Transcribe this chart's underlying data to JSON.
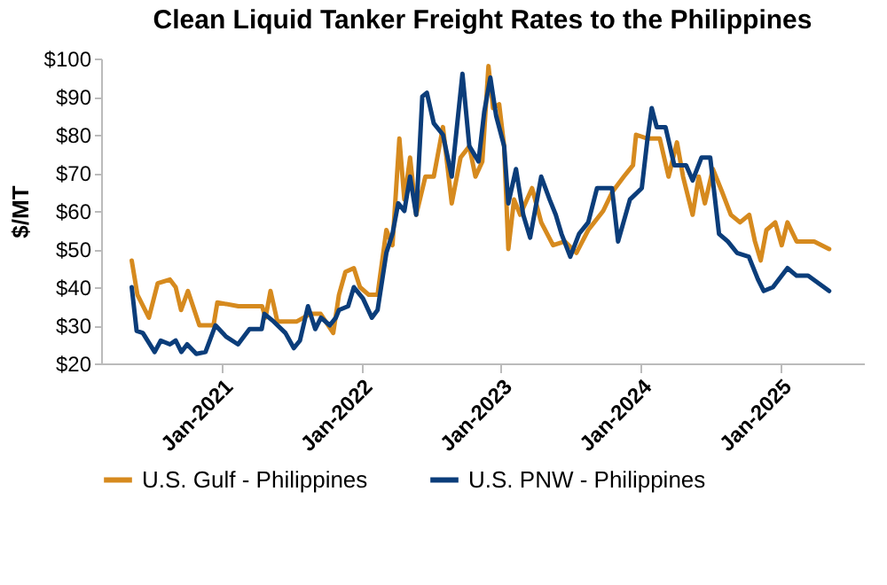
{
  "chart_data": {
    "type": "line",
    "title": "Clean Liquid Tanker Freight Rates to the Philippines",
    "ylabel": "$/MT",
    "xlim": [
      "2020-02-20",
      "2025-08-07"
    ],
    "xticks": [
      {
        "value": "2021-01-01",
        "label": "Jan-2021"
      },
      {
        "value": "2022-01-01",
        "label": "Jan-2022"
      },
      {
        "value": "2023-01-01",
        "label": "Jan-2023"
      },
      {
        "value": "2024-01-01",
        "label": "Jan-2024"
      },
      {
        "value": "2025-01-01",
        "label": "Jan-2025"
      }
    ],
    "ylim": [
      20,
      100
    ],
    "yticks": [
      {
        "value": 20,
        "label": "$20"
      },
      {
        "value": 30,
        "label": "$30"
      },
      {
        "value": 40,
        "label": "$40"
      },
      {
        "value": 50,
        "label": "$50"
      },
      {
        "value": 60,
        "label": "$60"
      },
      {
        "value": 70,
        "label": "$70"
      },
      {
        "value": 80,
        "label": "$80"
      },
      {
        "value": 90,
        "label": "$90"
      },
      {
        "value": 100,
        "label": "$100"
      }
    ],
    "grid": false,
    "legend": "bottom",
    "series": [
      {
        "name": "U.S. Gulf - Philippines",
        "color": "#d68a1e",
        "x": [
          "2020-05-10",
          "2020-05-25",
          "2020-06-24",
          "2020-07-17",
          "2020-08-18",
          "2020-09-02",
          "2020-09-16",
          "2020-10-04",
          "2020-11-03",
          "2020-12-10",
          "2020-12-20",
          "2021-02-13",
          "2021-04-16",
          "2021-04-25",
          "2021-05-08",
          "2021-05-26",
          "2021-07-16",
          "2021-08-20",
          "2021-09-16",
          "2021-10-19",
          "2021-11-03",
          "2021-11-20",
          "2021-12-12",
          "2021-12-28",
          "2022-01-20",
          "2022-02-12",
          "2022-03-07",
          "2022-03-23",
          "2022-04-10",
          "2022-04-23",
          "2022-05-08",
          "2022-05-24",
          "2022-06-17",
          "2022-07-09",
          "2022-08-02",
          "2022-08-25",
          "2022-09-17",
          "2022-10-10",
          "2022-10-26",
          "2022-11-13",
          "2022-11-29",
          "2022-12-11",
          "2022-12-27",
          "2023-01-09",
          "2023-01-20",
          "2023-02-04",
          "2023-02-20",
          "2023-03-23",
          "2023-04-16",
          "2023-05-17",
          "2023-06-17",
          "2023-07-17",
          "2023-08-17",
          "2023-09-25",
          "2023-10-19",
          "2023-11-18",
          "2023-12-12",
          "2023-12-20",
          "2024-01-19",
          "2024-02-20",
          "2024-03-14",
          "2024-04-05",
          "2024-04-21",
          "2024-05-16",
          "2024-06-01",
          "2024-06-17",
          "2024-07-08",
          "2024-08-01",
          "2024-08-24",
          "2024-09-17",
          "2024-10-11",
          "2024-10-26",
          "2024-11-10",
          "2024-11-25",
          "2024-12-18",
          "2025-01-04",
          "2025-01-19",
          "2025-02-12",
          "2025-03-30",
          "2025-05-08"
        ],
        "values": [
          47,
          38,
          32,
          41,
          42,
          40,
          34,
          39,
          30,
          30,
          36,
          35,
          35,
          32,
          39,
          31,
          31,
          33,
          33,
          28,
          38,
          44,
          45,
          40,
          38,
          38,
          55,
          51,
          79,
          63,
          74,
          59,
          69,
          69,
          82,
          62,
          74,
          77,
          69,
          73,
          98,
          87,
          88,
          77,
          50,
          63,
          59,
          66,
          57,
          51,
          52,
          49,
          55,
          60,
          65,
          69,
          72,
          80,
          79,
          79,
          69,
          78,
          69,
          59,
          69,
          62,
          71,
          65,
          59,
          57,
          59,
          52,
          47,
          55,
          57,
          51,
          57,
          52,
          52,
          50
        ]
      },
      {
        "name": "U.S. PNW - Philippines",
        "color": "#0b3d7a",
        "x": [
          "2020-05-10",
          "2020-05-23",
          "2020-06-08",
          "2020-07-09",
          "2020-07-25",
          "2020-08-18",
          "2020-09-02",
          "2020-09-17",
          "2020-10-02",
          "2020-10-26",
          "2020-11-19",
          "2020-12-15",
          "2021-01-12",
          "2021-02-12",
          "2021-03-14",
          "2021-04-15",
          "2021-04-22",
          "2021-05-16",
          "2021-06-16",
          "2021-07-08",
          "2021-07-24",
          "2021-08-14",
          "2021-09-02",
          "2021-09-17",
          "2021-10-10",
          "2021-10-26",
          "2021-11-03",
          "2021-11-27",
          "2021-12-12",
          "2022-01-05",
          "2022-01-28",
          "2022-02-12",
          "2022-03-07",
          "2022-03-23",
          "2022-04-07",
          "2022-04-23",
          "2022-05-08",
          "2022-05-24",
          "2022-06-09",
          "2022-06-21",
          "2022-07-09",
          "2022-08-02",
          "2022-08-25",
          "2022-09-22",
          "2022-10-10",
          "2022-11-03",
          "2022-11-18",
          "2022-12-04",
          "2022-12-19",
          "2023-01-09",
          "2023-01-20",
          "2023-02-09",
          "2023-02-28",
          "2023-03-18",
          "2023-04-16",
          "2023-05-08",
          "2023-05-24",
          "2023-06-08",
          "2023-07-01",
          "2023-07-24",
          "2023-08-17",
          "2023-09-09",
          "2023-10-02",
          "2023-10-18",
          "2023-11-03",
          "2023-12-04",
          "2024-01-04",
          "2024-01-19",
          "2024-01-30",
          "2024-02-12",
          "2024-03-06",
          "2024-03-29",
          "2024-04-29",
          "2024-05-16",
          "2024-06-08",
          "2024-07-01",
          "2024-07-24",
          "2024-08-16",
          "2024-09-09",
          "2024-10-10",
          "2024-11-03",
          "2024-11-18",
          "2024-12-12",
          "2025-01-19",
          "2025-02-12",
          "2025-03-14",
          "2025-05-08"
        ],
        "values": [
          40,
          28.5,
          28,
          23,
          26,
          25,
          26,
          23,
          25,
          22.5,
          23,
          30,
          27,
          25,
          29,
          29,
          33,
          31,
          28,
          24,
          26,
          35,
          29,
          32,
          30,
          32,
          34,
          35,
          40,
          37,
          32,
          34,
          49,
          54,
          62,
          60,
          69,
          59,
          90,
          91,
          83,
          80,
          69,
          96,
          77,
          73,
          86,
          95,
          85,
          77,
          62,
          71,
          59,
          53,
          69,
          63,
          59,
          54,
          48,
          54,
          57,
          66,
          66,
          66,
          52,
          63,
          66,
          79,
          87,
          82,
          82,
          72,
          72,
          68,
          74,
          74,
          54,
          52,
          49,
          48,
          42,
          39,
          40,
          45,
          43,
          43,
          39
        ]
      }
    ]
  }
}
